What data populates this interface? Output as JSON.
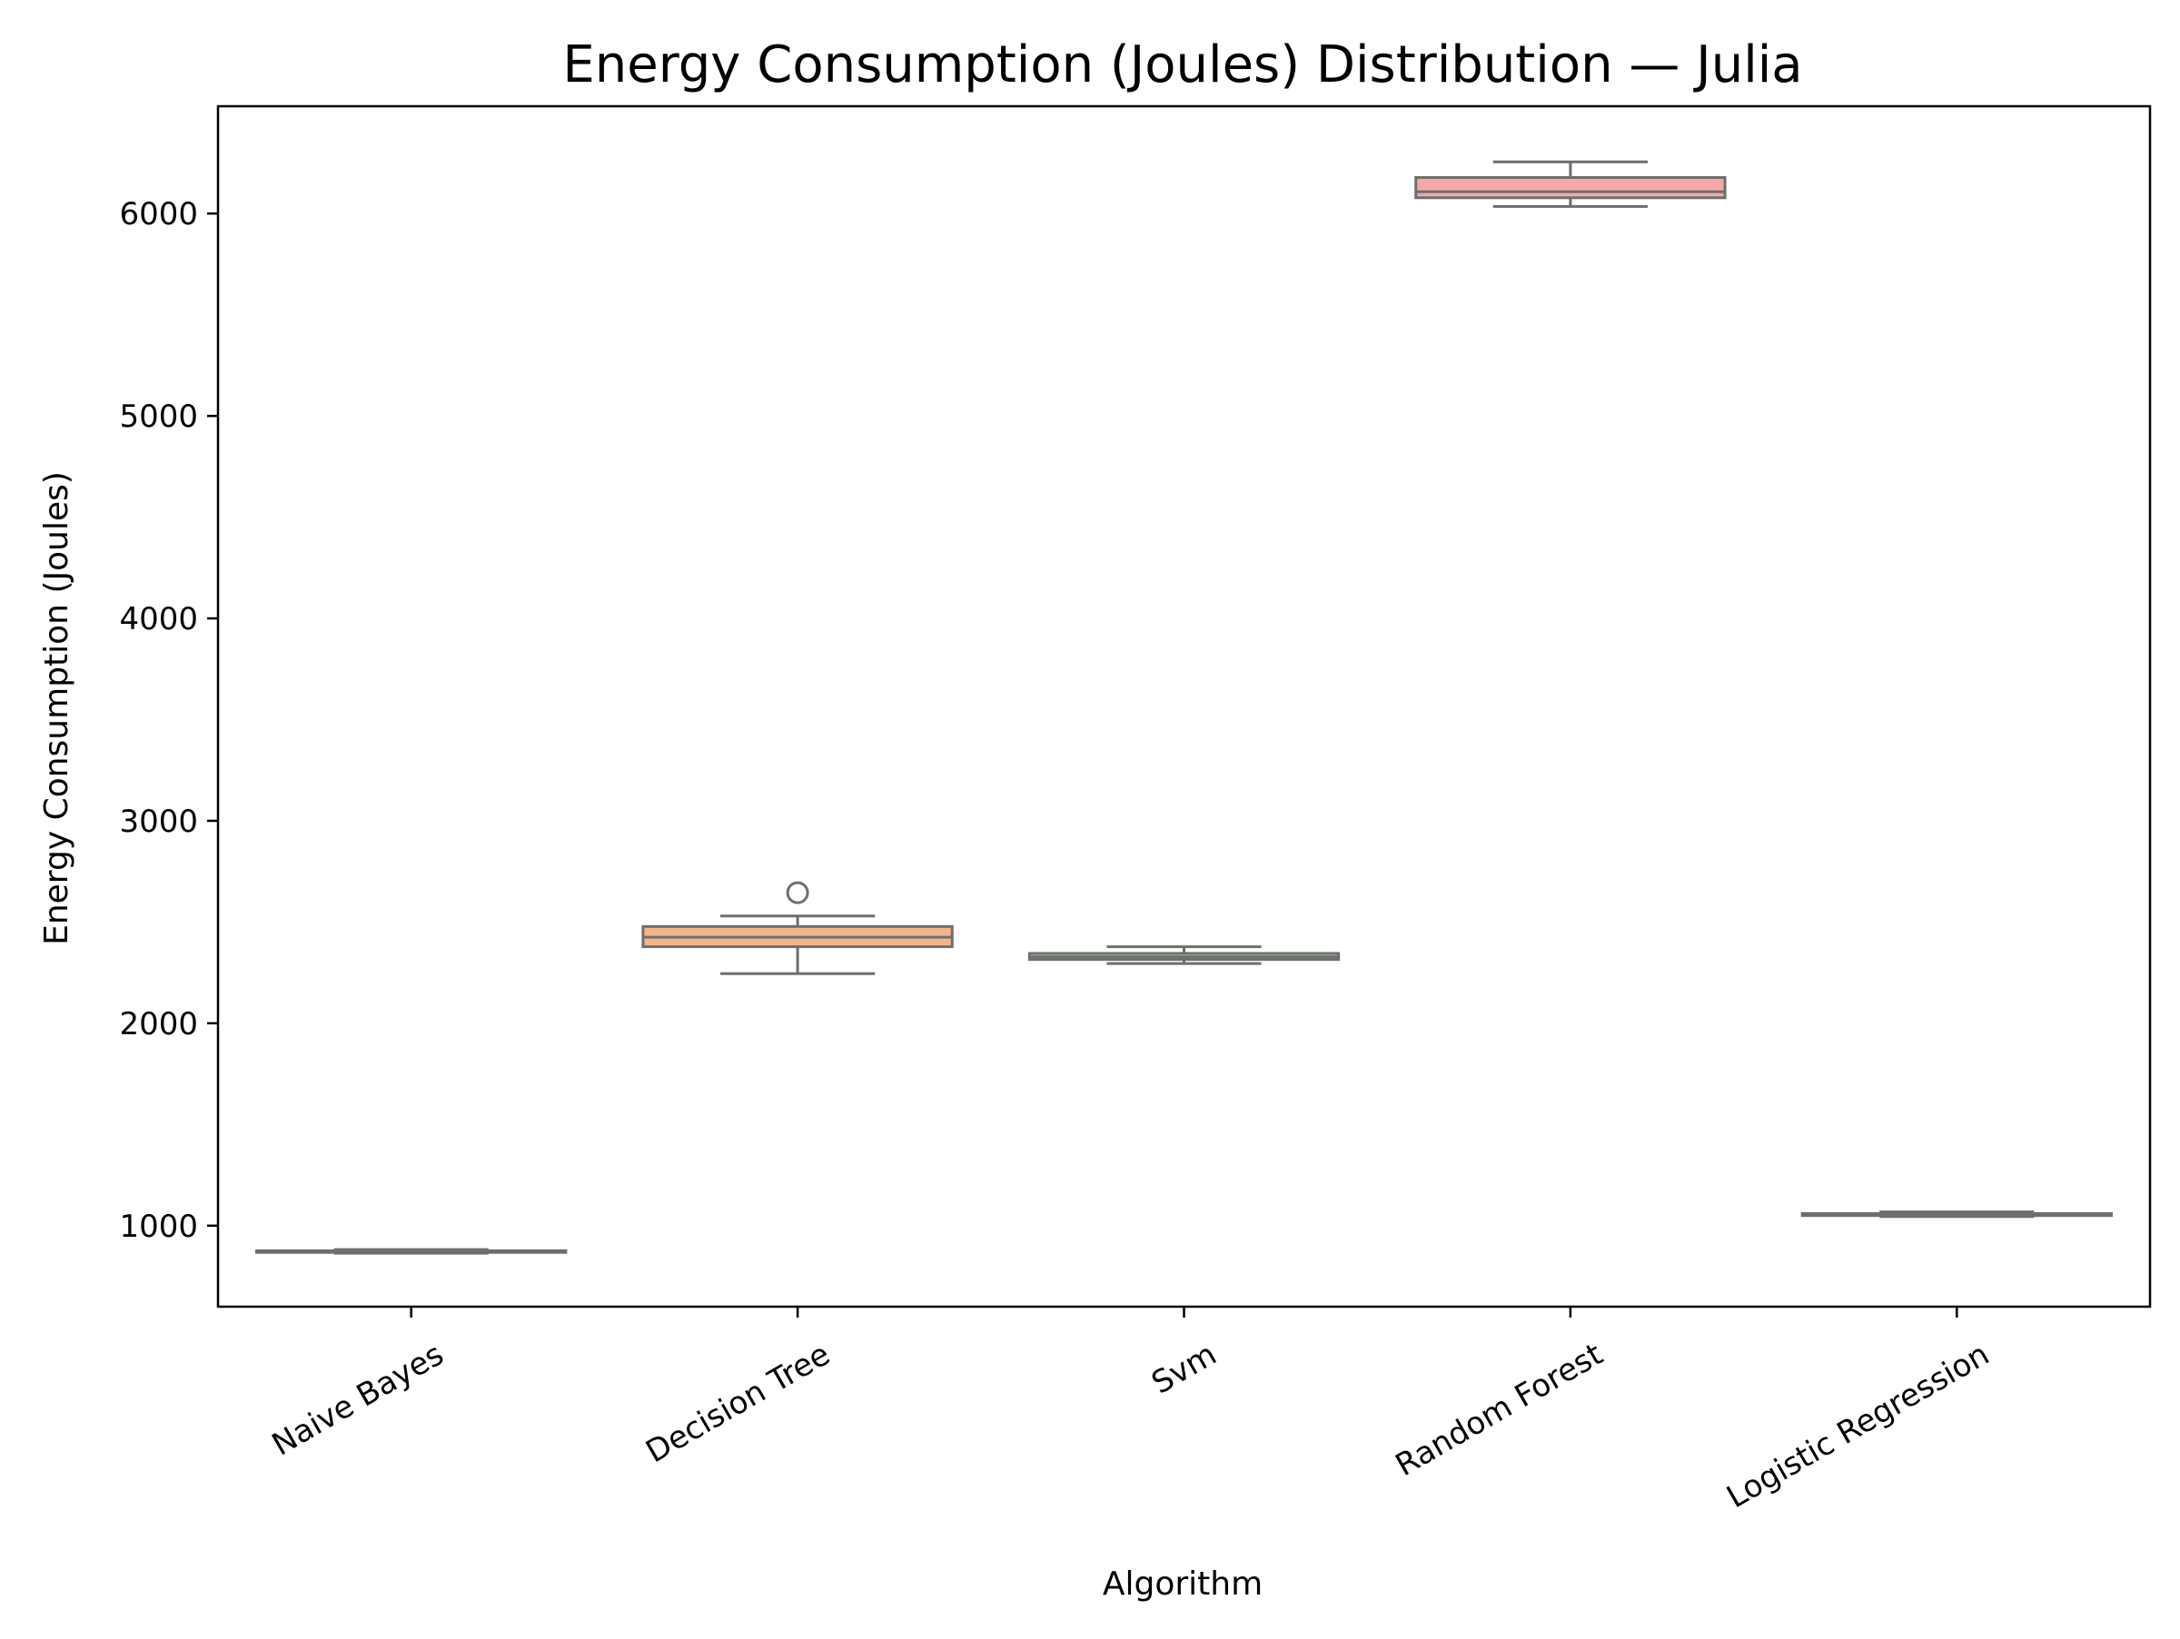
{
  "chart_data": {
    "type": "box",
    "title": "Energy Consumption (Joules) Distribution — Julia",
    "xlabel": "Algorithm",
    "ylabel": "Energy Consumption (Joules)",
    "ylim": [
      600,
      6530
    ],
    "yticks": [
      1000,
      2000,
      3000,
      4000,
      5000,
      6000
    ],
    "ytick_labels": [
      "1000",
      "2000",
      "3000",
      "4000",
      "5000",
      "6000"
    ],
    "grid": false,
    "legend": "none",
    "categories": [
      "Naive Bayes",
      "Decision Tree",
      "Svm",
      "Random Forest",
      "Logistic Regression"
    ],
    "boxes": [
      {
        "category": "Naive Bayes",
        "min": 864,
        "q1": 868,
        "median": 872,
        "q3": 876,
        "max": 882,
        "outliers": [],
        "color": "#8fb3d9"
      },
      {
        "category": "Decision Tree",
        "min": 2245,
        "q1": 2378,
        "median": 2425,
        "q3": 2478,
        "max": 2530,
        "outliers": [
          2645
        ],
        "color": "#f2b48c"
      },
      {
        "category": "Svm",
        "min": 2295,
        "q1": 2315,
        "median": 2328,
        "q3": 2345,
        "max": 2378,
        "outliers": [],
        "color": "#a8d5a2"
      },
      {
        "category": "Random Forest",
        "min": 6035,
        "q1": 6078,
        "median": 6108,
        "q3": 6178,
        "max": 6255,
        "outliers": [],
        "color": "#f4a9a8"
      },
      {
        "category": "Logistic Regression",
        "min": 1045,
        "q1": 1050,
        "median": 1055,
        "q3": 1060,
        "max": 1068,
        "outliers": [],
        "color": "#c9b6e3"
      }
    ],
    "line_color": "#6e6e6e"
  }
}
